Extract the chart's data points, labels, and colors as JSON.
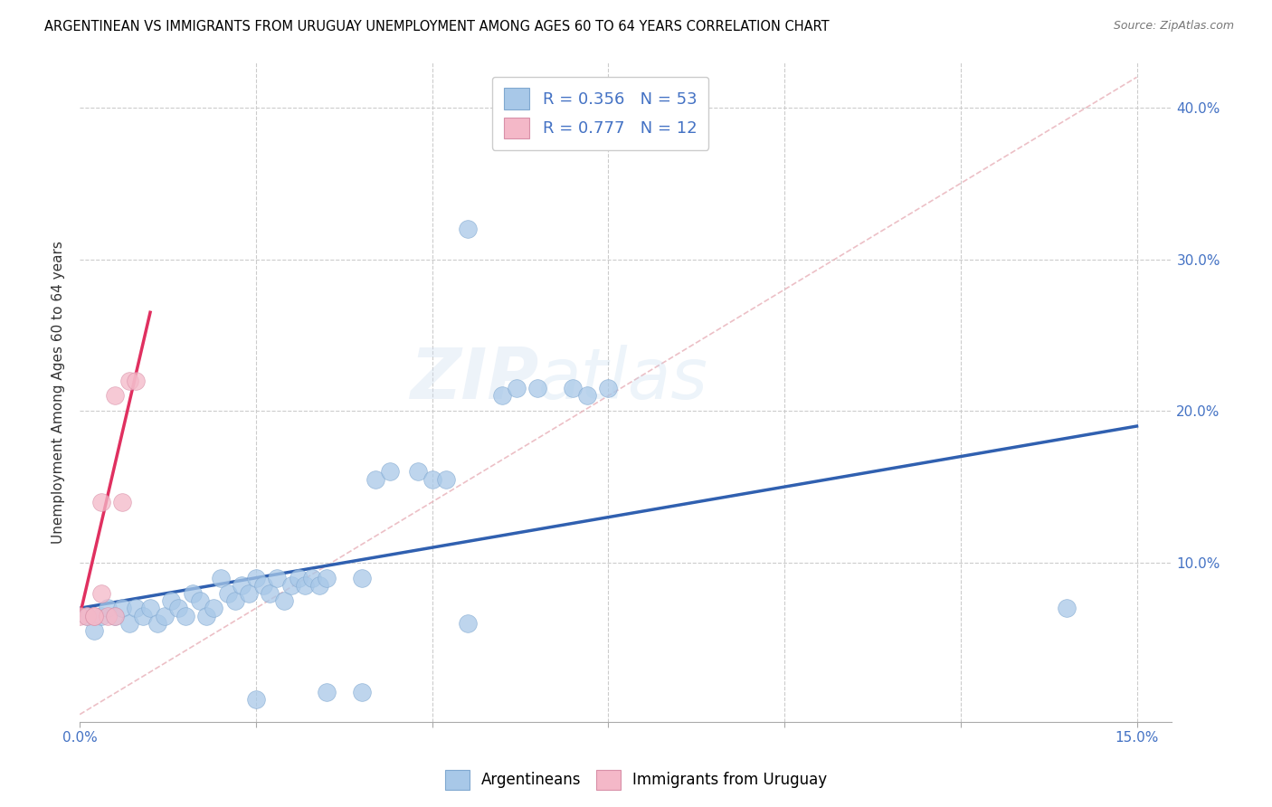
{
  "title": "ARGENTINEAN VS IMMIGRANTS FROM URUGUAY UNEMPLOYMENT AMONG AGES 60 TO 64 YEARS CORRELATION CHART",
  "source": "Source: ZipAtlas.com",
  "ylabel": "Unemployment Among Ages 60 to 64 years",
  "xlim": [
    0.0,
    0.155
  ],
  "ylim": [
    -0.005,
    0.43
  ],
  "xticks": [
    0.0,
    0.025,
    0.05,
    0.075,
    0.1,
    0.125,
    0.15
  ],
  "yticks": [
    0.0,
    0.1,
    0.2,
    0.3,
    0.4
  ],
  "xtick_labels_bottom": [
    "0.0%",
    "",
    "",
    "",
    "",
    "",
    "15.0%"
  ],
  "ytick_labels_right": [
    "",
    "10.0%",
    "20.0%",
    "30.0%",
    "40.0%"
  ],
  "legend_r1": "R = 0.356",
  "legend_n1": "N = 53",
  "legend_r2": "R = 0.777",
  "legend_n2": "N = 12",
  "blue_color": "#a8c8e8",
  "pink_color": "#f4b8c8",
  "line_blue": "#3060b0",
  "line_pink": "#e03060",
  "line_diag_color": "#e8b0b8",
  "text_blue": "#4472c4",
  "text_black": "#333333",
  "watermark": "ZIPatlas",
  "argentineans": [
    [
      0.001,
      0.065
    ],
    [
      0.002,
      0.055
    ],
    [
      0.003,
      0.065
    ],
    [
      0.004,
      0.07
    ],
    [
      0.005,
      0.065
    ],
    [
      0.006,
      0.07
    ],
    [
      0.007,
      0.06
    ],
    [
      0.008,
      0.07
    ],
    [
      0.009,
      0.065
    ],
    [
      0.01,
      0.07
    ],
    [
      0.011,
      0.06
    ],
    [
      0.012,
      0.065
    ],
    [
      0.013,
      0.075
    ],
    [
      0.014,
      0.07
    ],
    [
      0.015,
      0.065
    ],
    [
      0.016,
      0.08
    ],
    [
      0.017,
      0.075
    ],
    [
      0.018,
      0.065
    ],
    [
      0.019,
      0.07
    ],
    [
      0.02,
      0.09
    ],
    [
      0.021,
      0.08
    ],
    [
      0.022,
      0.075
    ],
    [
      0.023,
      0.085
    ],
    [
      0.024,
      0.08
    ],
    [
      0.025,
      0.09
    ],
    [
      0.026,
      0.085
    ],
    [
      0.027,
      0.08
    ],
    [
      0.028,
      0.09
    ],
    [
      0.029,
      0.075
    ],
    [
      0.03,
      0.085
    ],
    [
      0.031,
      0.09
    ],
    [
      0.032,
      0.085
    ],
    [
      0.033,
      0.09
    ],
    [
      0.034,
      0.085
    ],
    [
      0.035,
      0.09
    ],
    [
      0.04,
      0.09
    ],
    [
      0.042,
      0.155
    ],
    [
      0.044,
      0.16
    ],
    [
      0.048,
      0.16
    ],
    [
      0.05,
      0.155
    ],
    [
      0.052,
      0.155
    ],
    [
      0.06,
      0.21
    ],
    [
      0.062,
      0.215
    ],
    [
      0.065,
      0.215
    ],
    [
      0.07,
      0.215
    ],
    [
      0.072,
      0.21
    ],
    [
      0.075,
      0.215
    ],
    [
      0.055,
      0.32
    ],
    [
      0.035,
      0.015
    ],
    [
      0.04,
      0.015
    ],
    [
      0.055,
      0.06
    ],
    [
      0.14,
      0.07
    ],
    [
      0.025,
      0.01
    ]
  ],
  "uruguayans": [
    [
      0.0,
      0.065
    ],
    [
      0.001,
      0.065
    ],
    [
      0.002,
      0.065
    ],
    [
      0.003,
      0.08
    ],
    [
      0.004,
      0.065
    ],
    [
      0.005,
      0.065
    ],
    [
      0.006,
      0.14
    ],
    [
      0.007,
      0.22
    ],
    [
      0.008,
      0.22
    ],
    [
      0.005,
      0.21
    ],
    [
      0.003,
      0.14
    ],
    [
      0.002,
      0.065
    ]
  ],
  "blue_line_x": [
    0.0,
    0.15
  ],
  "blue_line_y": [
    0.07,
    0.19
  ],
  "pink_line_x": [
    0.0,
    0.01
  ],
  "pink_line_y": [
    0.065,
    0.265
  ],
  "diag_line_x": [
    0.0,
    0.15
  ],
  "diag_line_y": [
    0.0,
    0.42
  ]
}
